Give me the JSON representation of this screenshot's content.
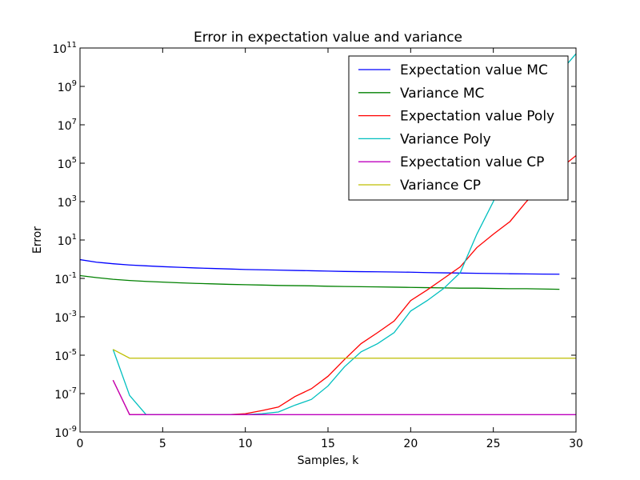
{
  "chart_data": {
    "type": "line",
    "title": "Error in expectation value and variance",
    "xlabel": "Samples, k",
    "ylabel": "Error",
    "xlim": [
      0,
      30
    ],
    "ylim": [
      1e-09,
      100000000000.0
    ],
    "yscale": "log",
    "grid": false,
    "legend_position": "top-right",
    "x_ticks": [
      {
        "value": 0,
        "label": "0"
      },
      {
        "value": 5,
        "label": "5"
      },
      {
        "value": 10,
        "label": "10"
      },
      {
        "value": 15,
        "label": "15"
      },
      {
        "value": 20,
        "label": "20"
      },
      {
        "value": 25,
        "label": "25"
      },
      {
        "value": 30,
        "label": "30"
      }
    ],
    "y_ticks": [
      {
        "value": 1e-09,
        "base": "10",
        "exp": "-9"
      },
      {
        "value": 1e-07,
        "base": "10",
        "exp": "-7"
      },
      {
        "value": 1e-05,
        "base": "10",
        "exp": "-5"
      },
      {
        "value": 0.001,
        "base": "10",
        "exp": "-3"
      },
      {
        "value": 0.1,
        "base": "10",
        "exp": "-1"
      },
      {
        "value": 10.0,
        "base": "10",
        "exp": "1"
      },
      {
        "value": 1000.0,
        "base": "10",
        "exp": "3"
      },
      {
        "value": 100000.0,
        "base": "10",
        "exp": "5"
      },
      {
        "value": 10000000.0,
        "base": "10",
        "exp": "7"
      },
      {
        "value": 1000000000.0,
        "base": "10",
        "exp": "9"
      },
      {
        "value": 100000000000.0,
        "base": "10",
        "exp": "11"
      }
    ],
    "series": [
      {
        "name": "Expectation value MC",
        "color": "#0000ff",
        "x": [
          0,
          1,
          2,
          3,
          4,
          5,
          6,
          7,
          8,
          9,
          10,
          11,
          12,
          13,
          14,
          15,
          16,
          17,
          18,
          19,
          20,
          21,
          22,
          23,
          24,
          25,
          26,
          27,
          28,
          29
        ],
        "y": [
          0.95,
          0.7,
          0.58,
          0.5,
          0.45,
          0.41,
          0.38,
          0.35,
          0.33,
          0.31,
          0.29,
          0.28,
          0.27,
          0.26,
          0.25,
          0.24,
          0.23,
          0.225,
          0.22,
          0.215,
          0.21,
          0.2,
          0.195,
          0.19,
          0.185,
          0.18,
          0.175,
          0.172,
          0.168,
          0.165
        ]
      },
      {
        "name": "Variance MC",
        "color": "#008000",
        "x": [
          0,
          1,
          2,
          3,
          4,
          5,
          6,
          7,
          8,
          9,
          10,
          11,
          12,
          13,
          14,
          15,
          16,
          17,
          18,
          19,
          20,
          21,
          22,
          23,
          24,
          25,
          26,
          27,
          28,
          29
        ],
        "y": [
          0.14,
          0.11,
          0.09,
          0.078,
          0.07,
          0.064,
          0.059,
          0.055,
          0.052,
          0.049,
          0.047,
          0.045,
          0.043,
          0.042,
          0.041,
          0.039,
          0.038,
          0.037,
          0.036,
          0.035,
          0.034,
          0.033,
          0.032,
          0.031,
          0.031,
          0.03,
          0.029,
          0.029,
          0.028,
          0.027
        ]
      },
      {
        "name": "Expectation value Poly",
        "color": "#ff0000",
        "x": [
          2,
          3,
          4,
          5,
          6,
          7,
          8,
          9,
          10,
          11,
          12,
          13,
          14,
          15,
          16,
          17,
          18,
          19,
          20,
          21,
          22,
          23,
          24,
          25,
          26,
          27,
          28,
          29,
          30
        ],
        "y": [
          5e-07,
          8e-09,
          8e-09,
          8e-09,
          8e-09,
          8e-09,
          8e-09,
          8e-09,
          9e-09,
          1.3e-08,
          2e-08,
          7e-08,
          1.8e-07,
          8e-07,
          6e-06,
          4e-05,
          0.00015,
          0.0006,
          0.007,
          0.025,
          0.1,
          0.4,
          4,
          20,
          90,
          1000,
          8000,
          50000.0,
          250000.0
        ]
      },
      {
        "name": "Variance Poly",
        "color": "#00bfbf",
        "x": [
          2,
          3,
          4,
          5,
          6,
          7,
          8,
          9,
          10,
          11,
          12,
          13,
          14,
          15,
          16,
          17,
          18,
          19,
          20,
          21,
          22,
          23,
          24,
          25,
          26,
          27,
          28,
          29,
          30
        ],
        "y": [
          2e-05,
          8e-08,
          8e-09,
          8e-09,
          8e-09,
          8e-09,
          8e-09,
          8e-09,
          8e-09,
          9e-09,
          1.1e-08,
          2.5e-08,
          5e-08,
          2.5e-07,
          2.5e-06,
          1.5e-05,
          4e-05,
          0.00015,
          0.002,
          0.007,
          0.03,
          0.2,
          20,
          1000,
          200000.0,
          30000000.0,
          300000000.0,
          5000000000.0,
          50000000000.0
        ]
      },
      {
        "name": "Expectation value CP",
        "color": "#bf00bf",
        "x": [
          2,
          3,
          4,
          5,
          6,
          7,
          8,
          9,
          10,
          11,
          12,
          13,
          14,
          15,
          16,
          17,
          18,
          19,
          20,
          21,
          22,
          23,
          24,
          25,
          26,
          27,
          28,
          29,
          30
        ],
        "y": [
          5e-07,
          8e-09,
          8e-09,
          8e-09,
          8e-09,
          8e-09,
          8e-09,
          8e-09,
          8e-09,
          8e-09,
          8e-09,
          8e-09,
          8e-09,
          8e-09,
          8e-09,
          8e-09,
          8e-09,
          8e-09,
          8e-09,
          8e-09,
          8e-09,
          8e-09,
          8e-09,
          8e-09,
          8e-09,
          8e-09,
          8e-09,
          8e-09,
          8e-09
        ]
      },
      {
        "name": "Variance CP",
        "color": "#bfbf00",
        "x": [
          2,
          3,
          4,
          5,
          6,
          7,
          8,
          9,
          10,
          11,
          12,
          13,
          14,
          15,
          16,
          17,
          18,
          19,
          20,
          21,
          22,
          23,
          24,
          25,
          26,
          27,
          28,
          29,
          30
        ],
        "y": [
          2e-05,
          7e-06,
          7e-06,
          7e-06,
          7e-06,
          7e-06,
          7e-06,
          7e-06,
          7e-06,
          7e-06,
          7e-06,
          7e-06,
          7e-06,
          7e-06,
          7e-06,
          7e-06,
          7e-06,
          7e-06,
          7e-06,
          7e-06,
          7e-06,
          7e-06,
          7e-06,
          7e-06,
          7e-06,
          7e-06,
          7e-06,
          7e-06,
          7e-06
        ]
      }
    ]
  }
}
